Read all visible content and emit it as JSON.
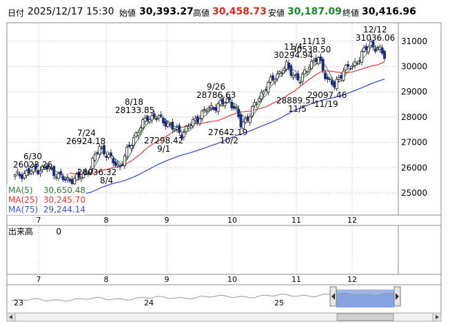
{
  "header": {
    "date_label": "日付",
    "date_value": "2025/12/17 15:30",
    "open_label": "始値",
    "open_value": "30,393.27",
    "high_label": "高値",
    "high_value": "30,458.73",
    "low_label": "安値",
    "low_value": "30,187.09",
    "close_label": "終値",
    "close_value": "30,416.96"
  },
  "colors": {
    "up": "#ffffff",
    "down": "#1a2a8a",
    "ma5": "#2e7d32",
    "ma25": "#e53935",
    "ma75": "#3a4fd6",
    "high_value": "#d52b1e",
    "low_value": "#1a8a2a",
    "grid": "#bbbbbb",
    "navigator_fill": "#9db4e8"
  },
  "legend": [
    {
      "name": "MA(5)",
      "value": "30,650.48",
      "color_key": "ma5"
    },
    {
      "name": "MA(25)",
      "value": "30,245.70",
      "color_key": "ma25"
    },
    {
      "name": "MA(75)",
      "value": "29,244.14",
      "color_key": "ma75"
    }
  ],
  "volume_pane": {
    "label": "出来高",
    "value": "0"
  },
  "month_labels": [
    "7",
    "8",
    "9",
    "10",
    "11",
    "12"
  ],
  "navigator_labels": [
    "23",
    "24",
    "25"
  ],
  "chart_data": {
    "type": "candlestick",
    "y_ticks": [
      25000,
      26000,
      27000,
      28000,
      29000,
      30000,
      31000
    ],
    "y_tick_labels": [
      "25000",
      "26000",
      "27000",
      "28000",
      "29000",
      "30000",
      "31000"
    ],
    "ylim": [
      24200,
      31700
    ],
    "grid": true,
    "annotations": [
      {
        "lines": [
          "6/30",
          "26023.26"
        ],
        "date": "6/30",
        "value": 26023.26,
        "kind": "high"
      },
      {
        "lines": [
          "7/24",
          "26924.18"
        ],
        "date": "7/24",
        "value": 26924.18,
        "kind": "high"
      },
      {
        "lines": [
          "26036.32",
          "8/4"
        ],
        "date": "8/4",
        "value": 26036.32,
        "kind": "low"
      },
      {
        "lines": [
          "8/18",
          "28133.85"
        ],
        "date": "8/18",
        "value": 28133.85,
        "kind": "high"
      },
      {
        "lines": [
          "27298.42",
          "9/1"
        ],
        "date": "9/1",
        "value": 27298.42,
        "kind": "low"
      },
      {
        "lines": [
          "9/26",
          "28786.63"
        ],
        "date": "9/26",
        "value": 28786.63,
        "kind": "high"
      },
      {
        "lines": [
          "27642.19",
          "10/2"
        ],
        "date": "10/2",
        "value": 27642.19,
        "kind": "low"
      },
      {
        "lines": [
          "11/4",
          "30294.94"
        ],
        "date": "11/4",
        "value": 30294.94,
        "kind": "high"
      },
      {
        "lines": [
          "11/13",
          "30538.50"
        ],
        "date": "11/13",
        "value": 30538.5,
        "kind": "high"
      },
      {
        "lines": [
          "28889.51",
          "11/5"
        ],
        "date": "11/5",
        "value": 28889.51,
        "kind": "low"
      },
      {
        "lines": [
          "29097.46",
          "11/19"
        ],
        "date": "11/19",
        "value": 29097.46,
        "kind": "low"
      },
      {
        "lines": [
          "12/12",
          "31036.06"
        ],
        "date": "12/12",
        "value": 31036.06,
        "kind": "high"
      }
    ],
    "series": [
      {
        "name": "MA(5)",
        "color_key": "ma5"
      },
      {
        "name": "MA(25)",
        "color_key": "ma25"
      },
      {
        "name": "MA(75)",
        "color_key": "ma75"
      }
    ]
  }
}
